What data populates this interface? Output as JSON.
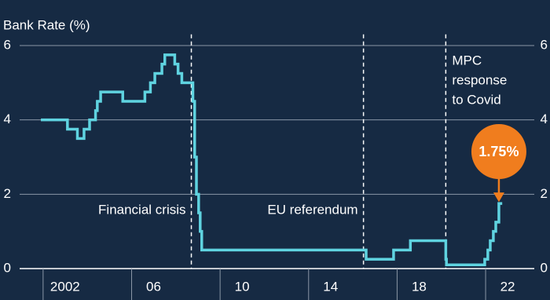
{
  "chart_data": {
    "type": "line",
    "y_label": "Bank Rate (%)",
    "step": true,
    "x": [
      2001.9,
      2003.1,
      2003.55,
      2003.85,
      2004.1,
      2004.37,
      2004.45,
      2004.6,
      2005.6,
      2006.6,
      2006.85,
      2007.05,
      2007.37,
      2007.5,
      2007.95,
      2008.1,
      2008.27,
      2008.77,
      2008.85,
      2008.93,
      2009.03,
      2009.1,
      2009.17,
      2016.6,
      2017.84,
      2018.6,
      2020.2,
      2020.23,
      2021.96,
      2022.1,
      2022.21,
      2022.35,
      2022.46,
      2022.6,
      2022.75
    ],
    "series": [
      {
        "name": "Bank Rate",
        "color": "#5fd3e0",
        "values": [
          4.0,
          3.75,
          3.5,
          3.75,
          4.0,
          4.25,
          4.5,
          4.75,
          4.5,
          4.75,
          5.0,
          5.25,
          5.5,
          5.75,
          5.5,
          5.25,
          5.0,
          4.5,
          3.0,
          2.0,
          1.5,
          1.0,
          0.5,
          0.25,
          0.5,
          0.75,
          0.25,
          0.1,
          0.25,
          0.5,
          0.75,
          1.0,
          1.25,
          1.75,
          1.75
        ]
      }
    ],
    "xlim": [
      2000.94,
      2024.2
    ],
    "ylim": [
      0,
      6.3
    ],
    "xticks": [
      {
        "value": 2002,
        "label": "2002"
      },
      {
        "value": 2006,
        "label": "06"
      },
      {
        "value": 2010,
        "label": "10"
      },
      {
        "value": 2014,
        "label": "14"
      },
      {
        "value": 2018,
        "label": "18"
      },
      {
        "value": 2022,
        "label": "22"
      }
    ],
    "yticks": [
      0,
      2,
      4,
      6
    ],
    "grid": true,
    "events": [
      {
        "x": 2008.7,
        "label": [
          "Financial crisis"
        ]
      },
      {
        "x": 2016.48,
        "label": [
          "EU referendum"
        ]
      },
      {
        "x": 2020.2,
        "label": [
          "MPC",
          "response",
          "to Covid"
        ]
      }
    ],
    "callout": {
      "x": 2022.6,
      "value": 1.75,
      "label": "1.75%",
      "color": "#f07d1e"
    }
  }
}
